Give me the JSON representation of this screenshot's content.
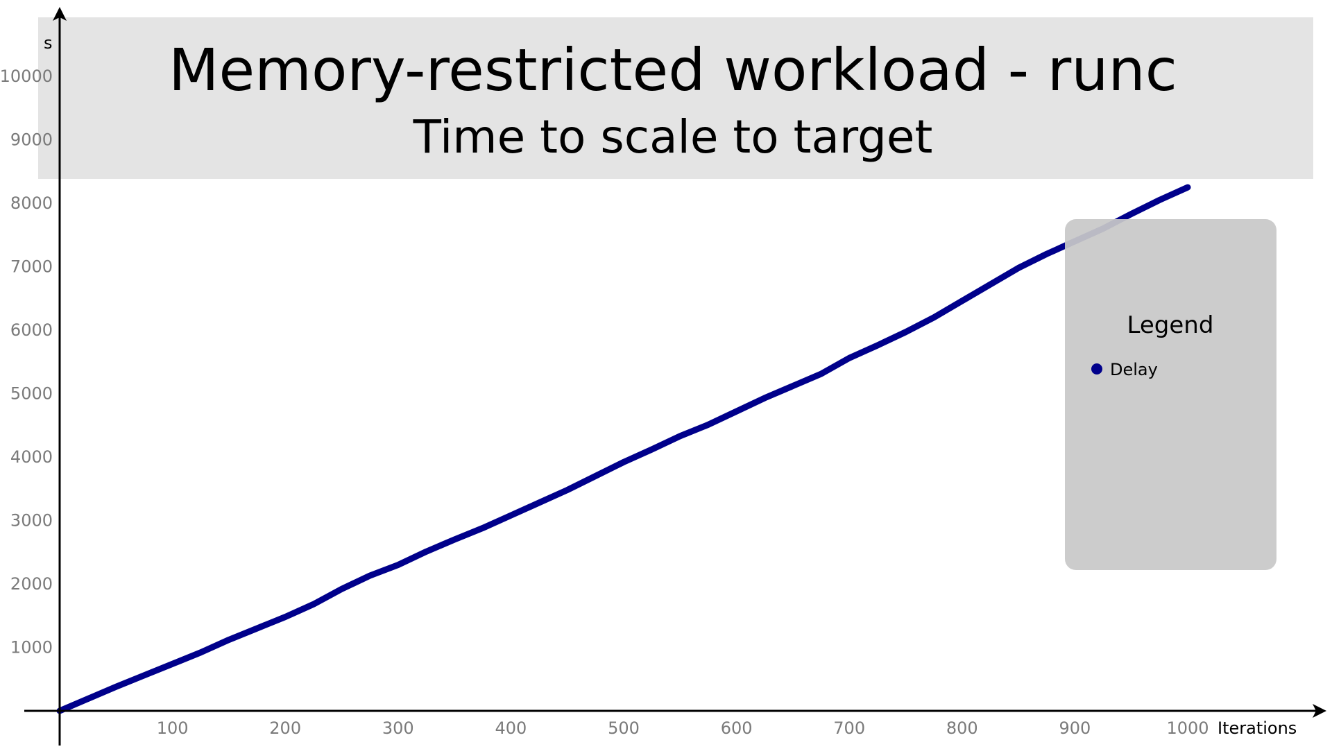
{
  "chart_data": {
    "type": "line",
    "title": "Memory-restricted workload - runc",
    "subtitle": "Time to scale to target",
    "xlabel": "Iterations",
    "ylabel": "s",
    "xlim": [
      0,
      1000
    ],
    "ylim": [
      0,
      10000
    ],
    "x_ticks": [
      "100",
      "200",
      "300",
      "400",
      "500",
      "600",
      "700",
      "800",
      "900",
      "1000"
    ],
    "y_ticks": [
      "1000",
      "2000",
      "3000",
      "4000",
      "5000",
      "6000",
      "7000",
      "8000",
      "9000",
      "10000"
    ],
    "grid": false,
    "legend_position": "right",
    "legend_title": "Legend",
    "series": [
      {
        "name": "Delay",
        "color": "#00008b",
        "x": [
          0,
          25,
          50,
          75,
          100,
          125,
          150,
          175,
          200,
          225,
          250,
          275,
          300,
          325,
          350,
          375,
          400,
          425,
          450,
          475,
          500,
          525,
          550,
          575,
          600,
          625,
          650,
          675,
          700,
          725,
          750,
          775,
          800,
          825,
          850,
          875,
          900,
          925,
          950,
          975,
          1000
        ],
        "y": [
          0,
          190,
          380,
          560,
          740,
          920,
          1120,
          1300,
          1480,
          1680,
          1920,
          2130,
          2300,
          2510,
          2700,
          2880,
          3080,
          3280,
          3480,
          3700,
          3920,
          4120,
          4330,
          4510,
          4720,
          4930,
          5120,
          5310,
          5560,
          5760,
          5970,
          6200,
          6460,
          6720,
          6980,
          7200,
          7400,
          7600,
          7830,
          8050,
          8250
        ]
      }
    ]
  }
}
